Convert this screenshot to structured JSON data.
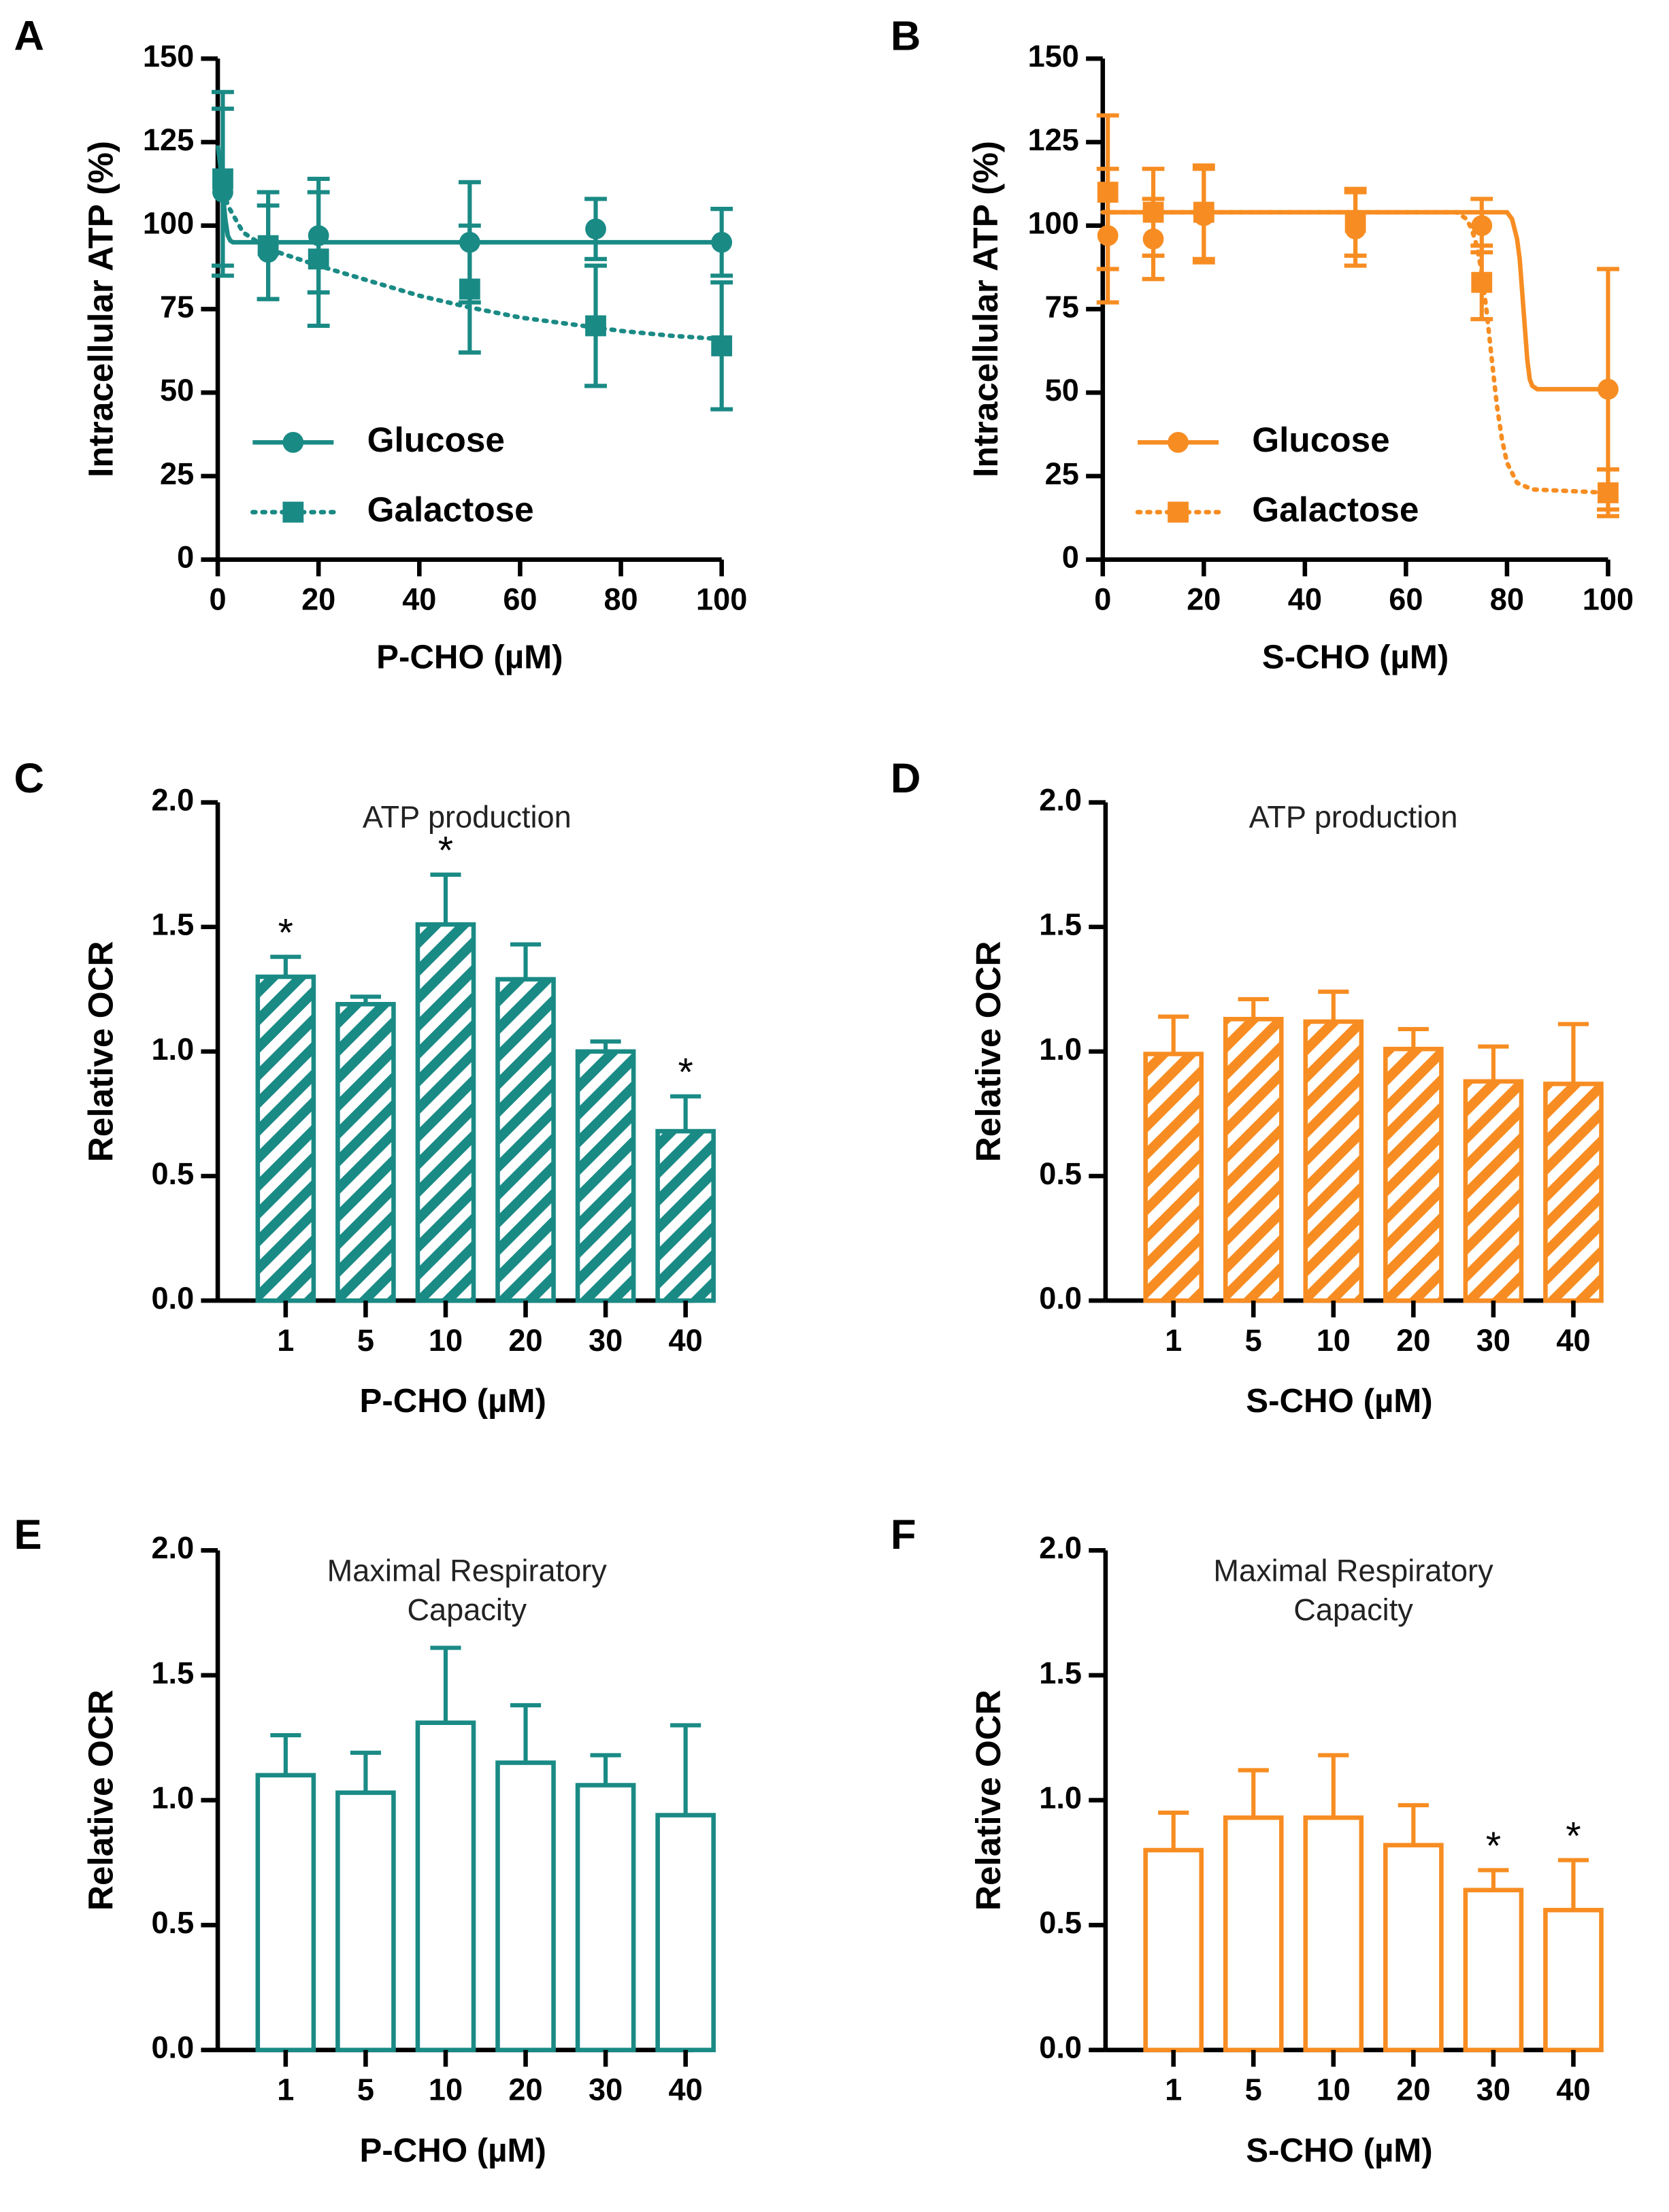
{
  "chart_data": [
    {
      "panel_label": "A",
      "type": "line",
      "color": "#1a8a85",
      "title": "",
      "xlabel": "P-CHO (µM)",
      "ylabel": "Intracellular ATP (%)",
      "xlim": [
        0,
        100
      ],
      "ylim": [
        0,
        150
      ],
      "xticks": [
        0,
        20,
        40,
        60,
        80,
        100
      ],
      "xtick_labels": [
        "0",
        "20",
        "40",
        "60",
        "80",
        "100"
      ],
      "yticks": [
        0,
        25,
        50,
        75,
        100,
        125,
        150
      ],
      "ytick_labels": [
        "0",
        "25",
        "50",
        "75",
        "100",
        "125",
        "150"
      ],
      "legend_position": "bottom-left",
      "series": [
        {
          "name": "Glucose",
          "marker": "circle",
          "line": "solid",
          "x": [
            1,
            10,
            20,
            50,
            75,
            100
          ],
          "y": [
            110,
            92,
            97,
            95,
            99,
            95
          ],
          "err": [
            25,
            14,
            17,
            18,
            9,
            10
          ],
          "fit_x": [
            0,
            0.5,
            1,
            1.5,
            2,
            2.5,
            3,
            4,
            5,
            100
          ],
          "fit_y": [
            124,
            118,
            110,
            102,
            97,
            95.5,
            95,
            95,
            95,
            95
          ]
        },
        {
          "name": "Galactose",
          "marker": "square",
          "line": "dotted",
          "x": [
            1,
            10,
            20,
            50,
            75,
            100
          ],
          "y": [
            114,
            94,
            90,
            81,
            70,
            64
          ],
          "err": [
            26,
            16,
            20,
            19,
            18,
            19
          ],
          "fit_x": [
            0,
            1,
            2,
            5,
            10,
            20,
            30,
            40,
            50,
            60,
            70,
            80,
            90,
            100
          ],
          "fit_y": [
            116,
            112,
            106,
            98,
            93,
            88,
            83.5,
            79,
            75.5,
            72.5,
            70.5,
            68.5,
            67,
            66
          ]
        }
      ]
    },
    {
      "panel_label": "B",
      "type": "line",
      "color": "#f78d22",
      "title": "",
      "xlabel": "S-CHO (µM)",
      "ylabel": "Intracellular ATP (%)",
      "xlim": [
        0,
        100
      ],
      "ylim": [
        0,
        150
      ],
      "xticks": [
        0,
        20,
        40,
        60,
        80,
        100
      ],
      "xtick_labels": [
        "0",
        "20",
        "40",
        "60",
        "80",
        "100"
      ],
      "yticks": [
        0,
        25,
        50,
        75,
        100,
        125,
        150
      ],
      "ytick_labels": [
        "0",
        "25",
        "50",
        "75",
        "100",
        "125",
        "150"
      ],
      "legend_position": "bottom-left",
      "series": [
        {
          "name": "Glucose",
          "marker": "circle",
          "line": "solid",
          "x": [
            1,
            10,
            20,
            50,
            75,
            100
          ],
          "y": [
            97,
            96,
            103,
            99,
            100,
            51
          ],
          "err": [
            20,
            12,
            14,
            11,
            8,
            36
          ],
          "fit_x": [
            0,
            80,
            81,
            82,
            82.5,
            83,
            83.5,
            84,
            84.5,
            85,
            86,
            88,
            100
          ],
          "fit_y": [
            104,
            104,
            102,
            96,
            90,
            80,
            70,
            60,
            54,
            52,
            51,
            51,
            51
          ]
        },
        {
          "name": "Galactose",
          "marker": "square",
          "line": "dotted",
          "x": [
            1,
            10,
            20,
            50,
            75,
            100
          ],
          "y": [
            110,
            104,
            104,
            101,
            83,
            20
          ],
          "err": [
            23,
            13,
            14,
            10,
            11,
            7
          ],
          "fit_x": [
            0,
            70,
            72,
            73,
            74,
            75,
            76,
            77,
            78,
            79,
            80,
            82,
            85,
            100
          ],
          "fit_y": [
            104,
            104,
            102,
            99,
            94,
            86,
            74,
            60,
            46,
            36,
            29,
            23,
            21,
            20
          ]
        }
      ]
    },
    {
      "panel_label": "C",
      "type": "bar",
      "color": "#1a8a85",
      "bar_style": "hatched",
      "title": "ATP production",
      "xlabel": "P-CHO (µM)",
      "ylabel": "Relative OCR",
      "categories": [
        "1",
        "5",
        "10",
        "20",
        "30",
        "40"
      ],
      "values": [
        1.3,
        1.19,
        1.51,
        1.29,
        1.0,
        0.68
      ],
      "errors": [
        0.08,
        0.03,
        0.2,
        0.14,
        0.04,
        0.14
      ],
      "significance": [
        "*",
        "",
        "*",
        "",
        "",
        "*"
      ],
      "ylim": [
        0,
        2.0
      ],
      "yticks": [
        0,
        0.5,
        1.0,
        1.5,
        2.0
      ],
      "ytick_labels": [
        "0.0",
        "0.5",
        "1.0",
        "1.5",
        "2.0"
      ]
    },
    {
      "panel_label": "D",
      "type": "bar",
      "color": "#f78d22",
      "bar_style": "hatched",
      "title": "ATP production",
      "xlabel": "S-CHO (µM)",
      "ylabel": "Relative OCR",
      "categories": [
        "1",
        "5",
        "10",
        "20",
        "30",
        "40"
      ],
      "values": [
        0.99,
        1.13,
        1.12,
        1.01,
        0.88,
        0.87
      ],
      "errors": [
        0.15,
        0.08,
        0.12,
        0.08,
        0.14,
        0.24
      ],
      "significance": [
        "",
        "",
        "",
        "",
        "",
        ""
      ],
      "ylim": [
        0,
        2.0
      ],
      "yticks": [
        0,
        0.5,
        1.0,
        1.5,
        2.0
      ],
      "ytick_labels": [
        "0.0",
        "0.5",
        "1.0",
        "1.5",
        "2.0"
      ]
    },
    {
      "panel_label": "E",
      "type": "bar",
      "color": "#1a8a85",
      "bar_style": "open",
      "title": "Maximal Respiratory\nCapacity",
      "xlabel": "P-CHO (µM)",
      "ylabel": "Relative OCR",
      "categories": [
        "1",
        "5",
        "10",
        "20",
        "30",
        "40"
      ],
      "values": [
        1.1,
        1.03,
        1.31,
        1.15,
        1.06,
        0.94
      ],
      "errors": [
        0.16,
        0.16,
        0.3,
        0.23,
        0.12,
        0.36
      ],
      "significance": [
        "",
        "",
        "",
        "",
        "",
        ""
      ],
      "ylim": [
        0,
        2.0
      ],
      "yticks": [
        0,
        0.5,
        1.0,
        1.5,
        2.0
      ],
      "ytick_labels": [
        "0.0",
        "0.5",
        "1.0",
        "1.5",
        "2.0"
      ]
    },
    {
      "panel_label": "F",
      "type": "bar",
      "color": "#f78d22",
      "bar_style": "open",
      "title": "Maximal Respiratory\nCapacity",
      "xlabel": "S-CHO (µM)",
      "ylabel": "Relative OCR",
      "categories": [
        "1",
        "5",
        "10",
        "20",
        "30",
        "40"
      ],
      "values": [
        0.8,
        0.93,
        0.93,
        0.82,
        0.64,
        0.56
      ],
      "errors": [
        0.15,
        0.19,
        0.25,
        0.16,
        0.08,
        0.2
      ],
      "significance": [
        "",
        "",
        "",
        "",
        "*",
        "*"
      ],
      "ylim": [
        0,
        2.0
      ],
      "yticks": [
        0,
        0.5,
        1.0,
        1.5,
        2.0
      ],
      "ytick_labels": [
        "0.0",
        "0.5",
        "1.0",
        "1.5",
        "2.0"
      ]
    }
  ]
}
